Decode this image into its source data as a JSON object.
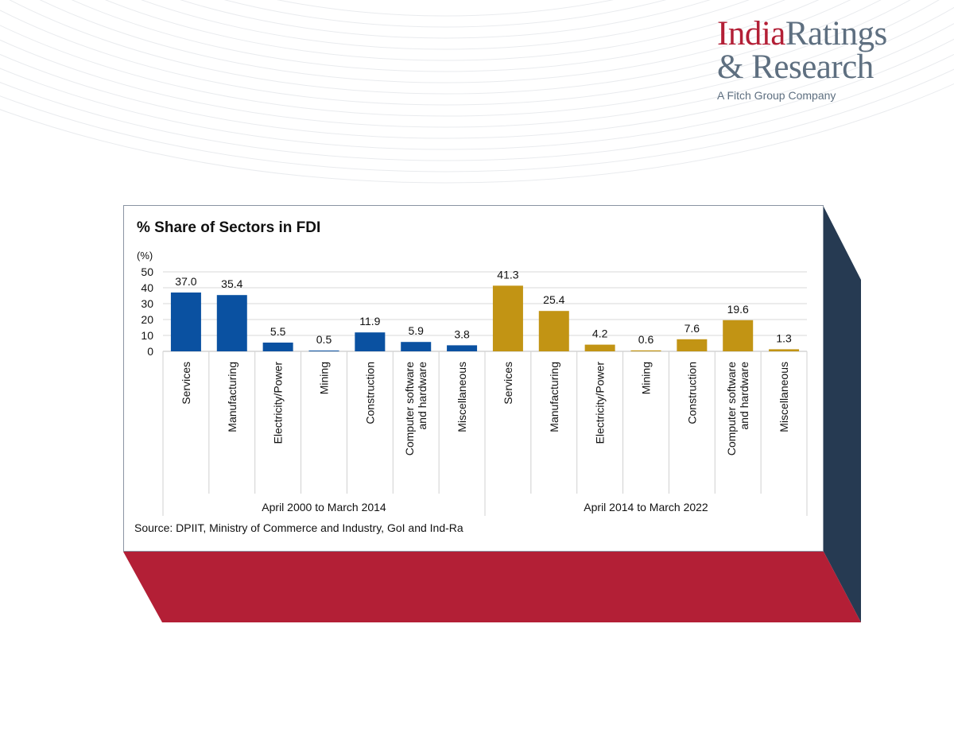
{
  "logo": {
    "india": "India",
    "ratings": "Ratings",
    "research": "& Research",
    "tagline": "A Fitch Group Company"
  },
  "colors": {
    "brand_red": "#b31f36",
    "navy": "#263a52",
    "bar_period1": "#0a51a1",
    "bar_period2": "#c29414"
  },
  "chart_data": {
    "type": "bar",
    "title": "% Share of Sectors in FDI",
    "ylabel": "(%)",
    "ylim": [
      0,
      50
    ],
    "yticks": [
      0,
      10,
      20,
      30,
      40,
      50
    ],
    "grid": true,
    "groups": [
      {
        "label": "April 2000 to March 2014",
        "color": "#0a51a1",
        "categories": [
          "Services",
          "Manufacturing",
          "Electricity/Power",
          "Mining",
          "Construction",
          "Computer software and hardware",
          "Miscellaneous"
        ],
        "values": [
          37.0,
          35.4,
          5.5,
          0.5,
          11.9,
          5.9,
          3.8
        ],
        "labels": [
          "37.0",
          "35.4",
          "5.5",
          "0.5",
          "11.9",
          "5.9",
          "3.8"
        ]
      },
      {
        "label": "April 2014 to March 2022",
        "color": "#c29414",
        "categories": [
          "Services",
          "Manufacturing",
          "Electricity/Power",
          "Mining",
          "Construction",
          "Computer software and hardware",
          "Miscellaneous"
        ],
        "values": [
          41.3,
          25.4,
          4.2,
          0.6,
          7.6,
          19.6,
          1.3
        ],
        "labels": [
          "41.3",
          "25.4",
          "4.2",
          "0.6",
          "7.6",
          "19.6",
          "1.3"
        ]
      }
    ],
    "source": "Source: DPIIT, Ministry of Commerce and Industry, GoI and Ind-Ra"
  }
}
